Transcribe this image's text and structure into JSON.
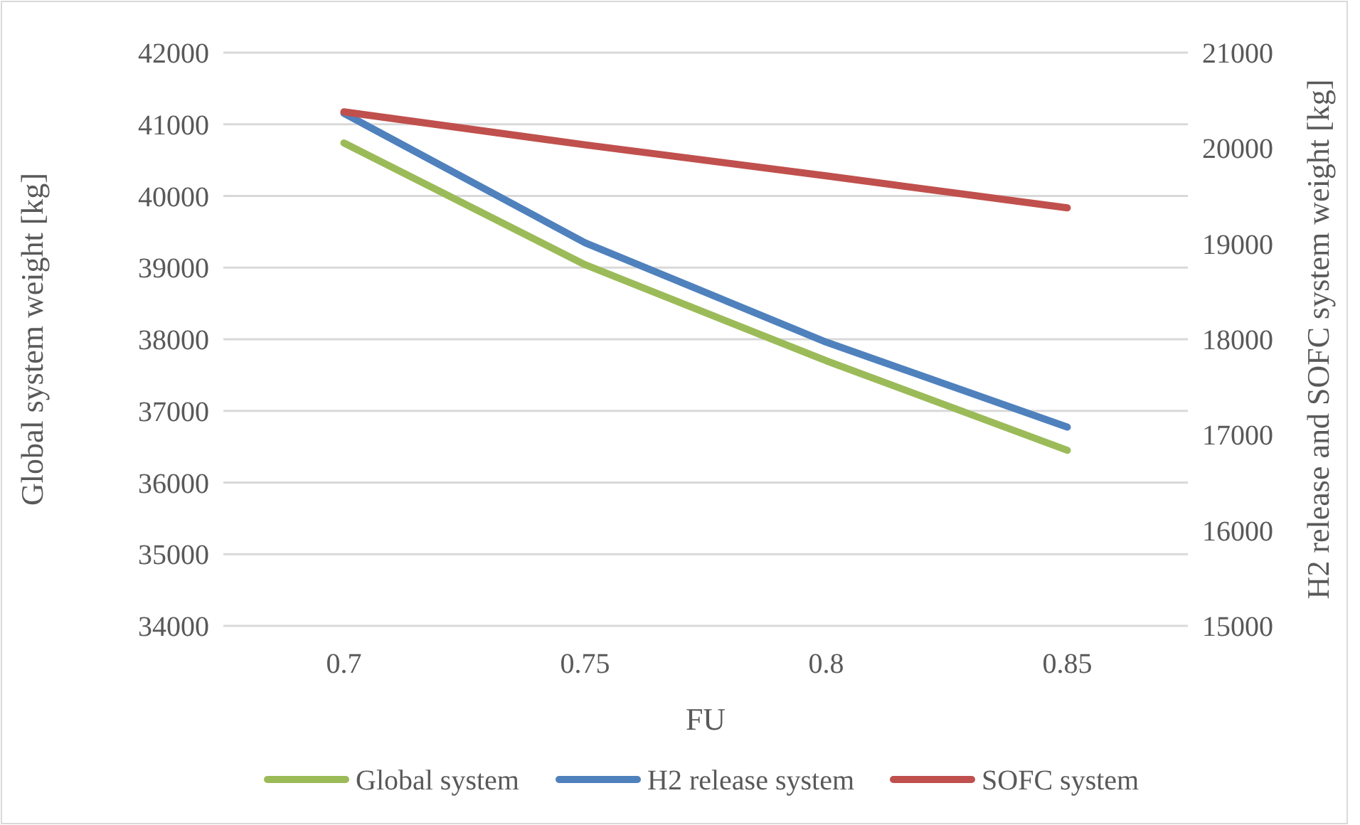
{
  "chart_data": {
    "type": "line",
    "xlabel": "FU",
    "ylabel": "Global system weight [kg]",
    "y2label": "H2 release and SOFC system weight [kg]",
    "categories": [
      "0.7",
      "0.75",
      "0.8",
      "0.85"
    ],
    "ylim": [
      34000,
      42000
    ],
    "yticks": [
      34000,
      35000,
      36000,
      37000,
      38000,
      39000,
      40000,
      41000,
      42000
    ],
    "y2lim": [
      15000,
      21000
    ],
    "y2ticks": [
      15000,
      16000,
      17000,
      18000,
      19000,
      20000,
      21000
    ],
    "grid": "y",
    "legend": "bottom",
    "marker": "none",
    "line_style": "solid",
    "series": [
      {
        "name": "Global system",
        "color": "#9bbb59",
        "values": [
          40740,
          39040,
          37700,
          36450
        ]
      },
      {
        "name": "H2 release system",
        "color": "#4f81bd",
        "axis": "y2",
        "values": [
          20365,
          19010,
          17970,
          17080
        ]
      },
      {
        "name": "SOFC system",
        "color": "#c0504d",
        "axis": "y2",
        "values": [
          20380,
          20035,
          19710,
          19375
        ]
      }
    ]
  }
}
